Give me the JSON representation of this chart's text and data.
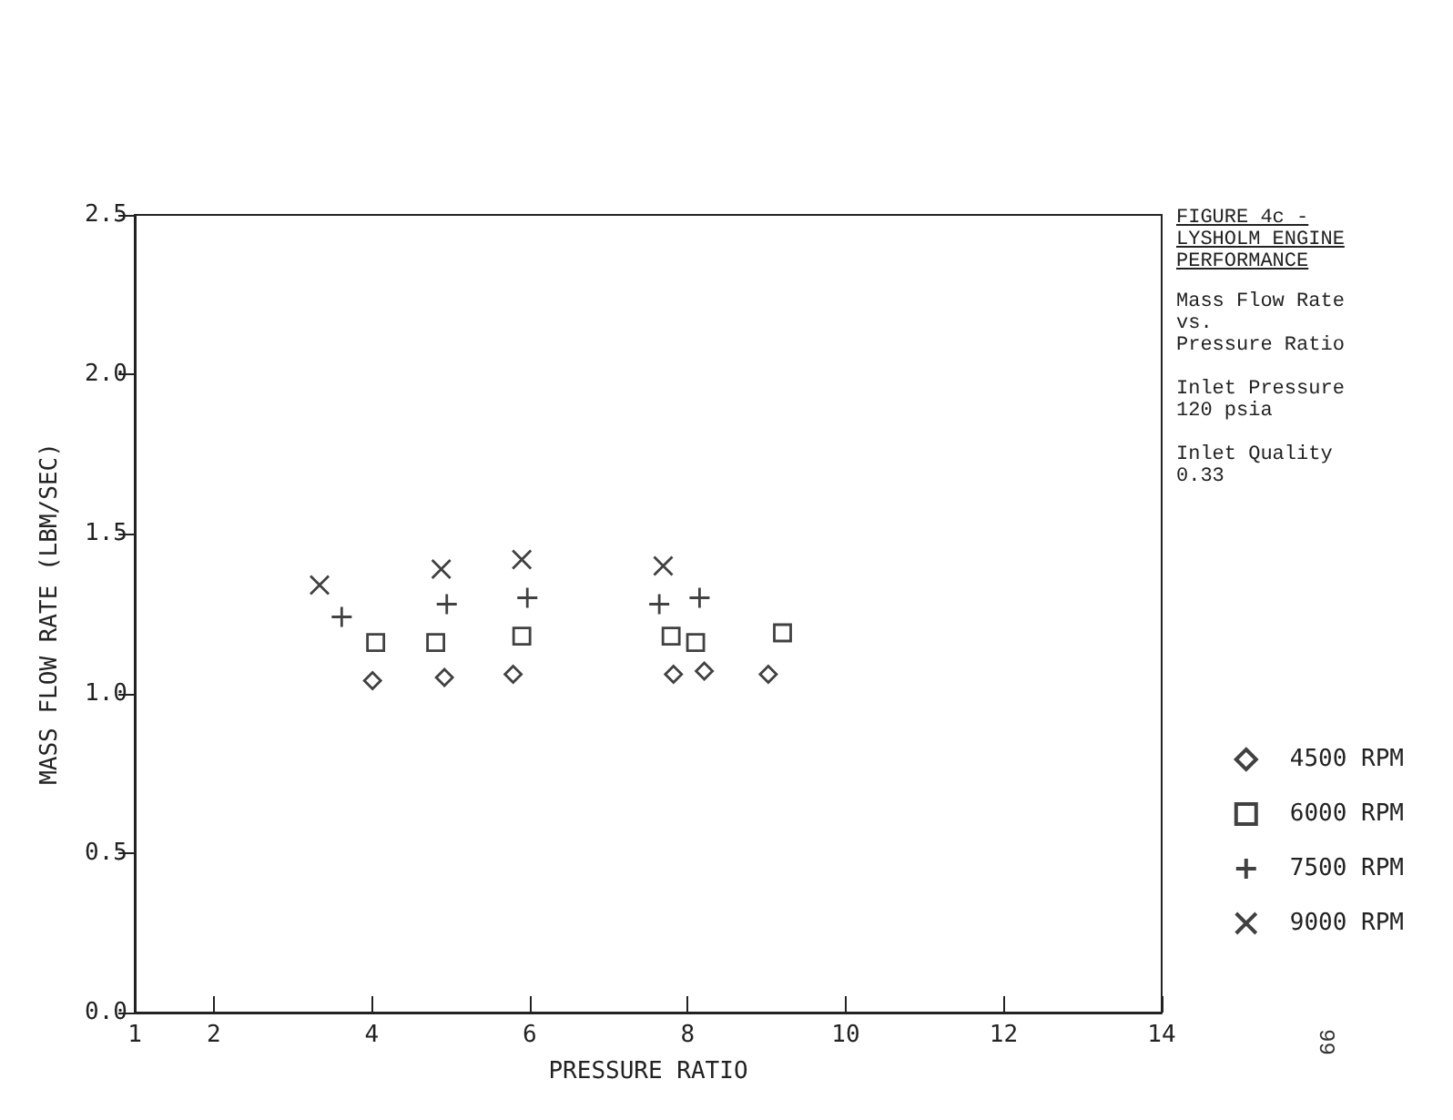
{
  "chart_data": {
    "type": "scatter",
    "title": "FIGURE 4c -\nLYSHOLM ENGINE\nPERFORMANCE",
    "subtitle": "Mass Flow Rate\nvs.\nPressure Ratio",
    "xlabel": "PRESSURE RATIO",
    "ylabel": "MASS FLOW RATE (LBM/SEC)",
    "annotations": [
      "Inlet Pressure\n120 psia",
      "Inlet Quality\n0.33",
      "99"
    ],
    "xlim": [
      1,
      14
    ],
    "xticks": [
      1,
      2,
      4,
      6,
      8,
      10,
      12,
      14
    ],
    "ylim": [
      0,
      2.5
    ],
    "yticks": [
      {
        "value": 0,
        "label": "0.0"
      },
      {
        "value": 0.5,
        "label": "0.5"
      },
      {
        "value": 1,
        "label": "1.0"
      },
      {
        "value": 1.5,
        "label": "1.5"
      },
      {
        "value": 2,
        "label": "2.0"
      },
      {
        "value": 2.5,
        "label": "2.5"
      }
    ],
    "grid": false,
    "legend": "bottom right",
    "series": [
      {
        "name": "4500 RPM",
        "color": "#111111",
        "marker": "diamond",
        "x": [
          4.01,
          4.92,
          5.79,
          7.82,
          8.21,
          9.02
        ],
        "values": [
          1.04,
          1.05,
          1.06,
          1.06,
          1.07,
          1.06
        ]
      },
      {
        "name": "6000 RPM",
        "color": "#111111",
        "marker": "square",
        "x": [
          4.05,
          4.81,
          5.9,
          7.79,
          8.1,
          9.2
        ],
        "values": [
          1.16,
          1.16,
          1.18,
          1.18,
          1.16,
          1.19
        ]
      },
      {
        "name": "7500 RPM",
        "color": "#111111",
        "marker": "plus",
        "x": [
          3.62,
          4.95,
          5.97,
          7.64,
          8.15
        ],
        "values": [
          1.24,
          1.28,
          1.3,
          1.28,
          1.3
        ]
      },
      {
        "name": "9000 RPM",
        "color": "#111111",
        "marker": "cross",
        "x": [
          3.34,
          4.88,
          5.9,
          7.69
        ],
        "values": [
          1.34,
          1.39,
          1.42,
          1.4
        ]
      }
    ]
  }
}
